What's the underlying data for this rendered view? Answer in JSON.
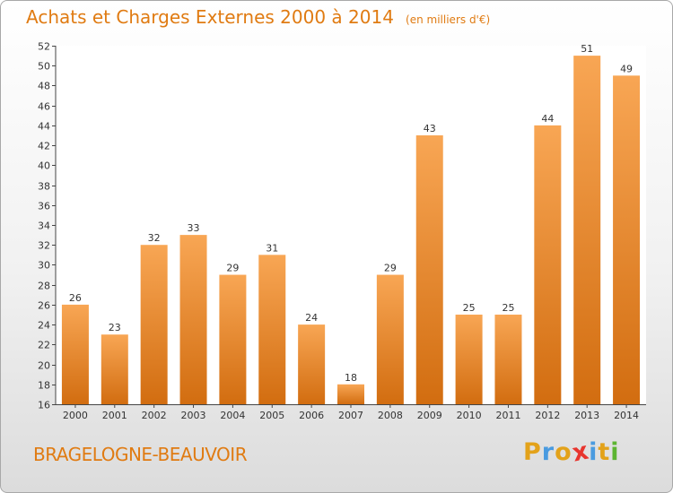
{
  "header": {
    "title": "Achats et Charges Externes 2000 à 2014",
    "unit": "(en milliers d'€)"
  },
  "footer": {
    "commune": "BRAGELOGNE-BEAUVOIR",
    "logo_text": "Proxiti"
  },
  "colors": {
    "accent": "#e07b12",
    "bar_light": "#f8a654",
    "bar_dark": "#d26d10",
    "logo_letters": [
      "#e3a21a",
      "#4a9be0",
      "#e3a21a",
      "#e8352e",
      "#4a9be0",
      "#e3a21a",
      "#5cb531"
    ]
  },
  "chart_data": {
    "type": "bar",
    "title": "Achats et Charges Externes 2000 à 2014",
    "subtitle": "(en milliers d'€)",
    "xlabel": "",
    "ylabel": "",
    "categories": [
      "2000",
      "2001",
      "2002",
      "2003",
      "2004",
      "2005",
      "2006",
      "2007",
      "2008",
      "2009",
      "2010",
      "2011",
      "2012",
      "2013",
      "2014"
    ],
    "values": [
      26,
      23,
      32,
      33,
      29,
      31,
      24,
      18,
      29,
      43,
      25,
      25,
      44,
      51,
      49
    ],
    "ylim": [
      16,
      52
    ],
    "yticks": [
      16,
      18,
      20,
      22,
      24,
      26,
      28,
      30,
      32,
      34,
      36,
      38,
      40,
      42,
      44,
      46,
      48,
      50,
      52
    ],
    "grid": false,
    "data_labels": true
  }
}
